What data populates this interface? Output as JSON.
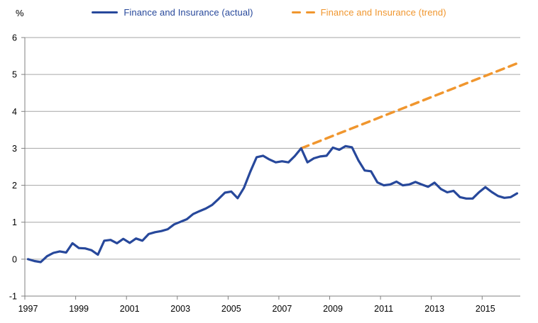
{
  "legend": {
    "actual": {
      "label": "Finance and Insurance (actual)"
    },
    "trend": {
      "label": "Finance and Insurance (trend)"
    }
  },
  "colors": {
    "actual": "#27489B",
    "trend": "#F0962E",
    "gridline": "#A6A6A6",
    "axis": "#808080",
    "tick_text": "#000000"
  },
  "chart_data": {
    "type": "line",
    "title": "",
    "ylabel": "%",
    "xlabel": "",
    "ylim": [
      -1,
      6
    ],
    "y_ticks": [
      6,
      5,
      4,
      3,
      2,
      1,
      0,
      -1
    ],
    "grid": true,
    "legend_position": "top-center",
    "frequency": "quarterly",
    "x_start": "1997-Q1",
    "x_end": "2016-Q2",
    "x_ticks": [
      {
        "label": "1997",
        "index": 0
      },
      {
        "label": "1999",
        "index": 8
      },
      {
        "label": "2001",
        "index": 16
      },
      {
        "label": "2003",
        "index": 24
      },
      {
        "label": "2005",
        "index": 32
      },
      {
        "label": "2007",
        "index": 40
      },
      {
        "label": "2009",
        "index": 48
      },
      {
        "label": "2011",
        "index": 56
      },
      {
        "label": "2013",
        "index": 64
      },
      {
        "label": "2015",
        "index": 72
      }
    ],
    "series": [
      {
        "name": "Finance and Insurance (actual)",
        "style": "solid",
        "start": "1997-Q1",
        "values": [
          0.0,
          -0.05,
          -0.08,
          0.08,
          0.17,
          0.21,
          0.18,
          0.43,
          0.3,
          0.29,
          0.24,
          0.12,
          0.5,
          0.52,
          0.43,
          0.55,
          0.44,
          0.56,
          0.5,
          0.68,
          0.73,
          0.76,
          0.81,
          0.94,
          1.01,
          1.08,
          1.22,
          1.3,
          1.37,
          1.47,
          1.63,
          1.8,
          1.83,
          1.65,
          1.93,
          2.37,
          2.76,
          2.8,
          2.7,
          2.62,
          2.65,
          2.62,
          2.79,
          3.0,
          2.62,
          2.73,
          2.78,
          2.8,
          3.02,
          2.96,
          3.06,
          3.03,
          2.68,
          2.4,
          2.38,
          2.08,
          2.0,
          2.02,
          2.1,
          2.0,
          2.02,
          2.09,
          2.02,
          1.96,
          2.07,
          1.9,
          1.81,
          1.85,
          1.68,
          1.64,
          1.64,
          1.81,
          1.95,
          1.82,
          1.71,
          1.66,
          1.68,
          1.78
        ]
      },
      {
        "name": "Finance and Insurance (trend)",
        "style": "dashed",
        "shape": "linear",
        "start": "2007-Q4",
        "end": "2016-Q2",
        "start_value": 3.0,
        "end_value": 5.3
      }
    ]
  }
}
